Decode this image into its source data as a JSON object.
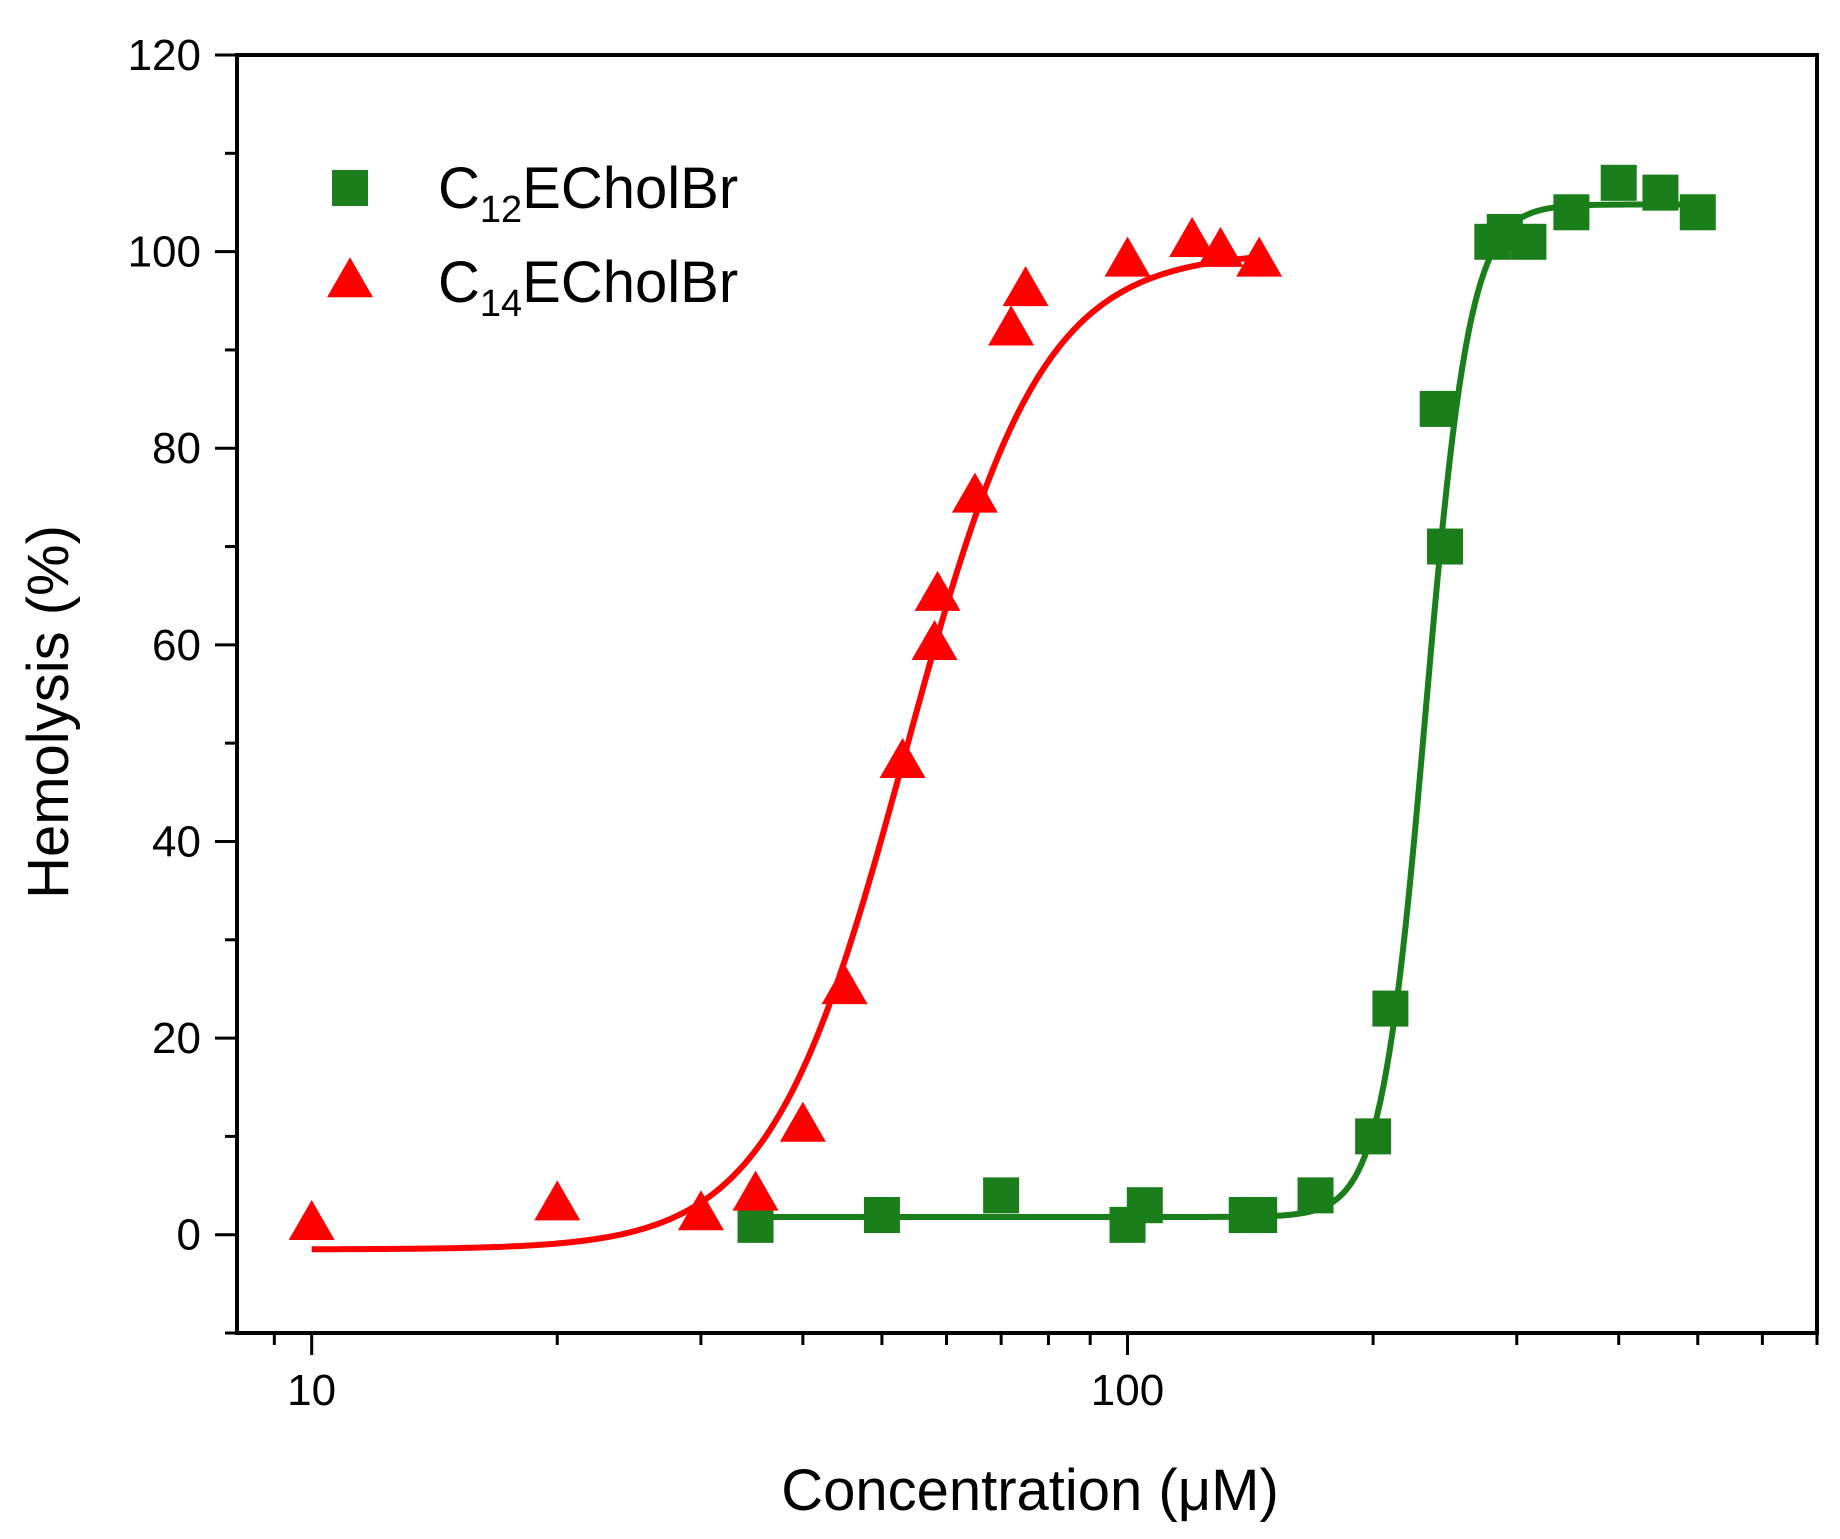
{
  "chart_data": {
    "type": "scatter",
    "title": "",
    "xlabel": "Concentration (μM)",
    "ylabel": "Hemolysis (%)",
    "xscale": "log",
    "xlim": [
      8.1,
      700
    ],
    "ylim": [
      -10,
      120
    ],
    "x_ticks": [
      10,
      100
    ],
    "x_tick_labels": [
      "10",
      "100"
    ],
    "y_ticks": [
      0,
      20,
      40,
      60,
      80,
      100,
      120
    ],
    "y_tick_labels": [
      "0",
      "20",
      "40",
      "60",
      "80",
      "100",
      "120"
    ],
    "legend_position": "top-left",
    "series": [
      {
        "name": "C12ECholBr",
        "legend": {
          "prefix": "C",
          "subscript": "12",
          "suffix": "ECholBr"
        },
        "marker": "square",
        "color": "#1a7f1a",
        "x": [
          35,
          50,
          70,
          100,
          105,
          140,
          145,
          170,
          200,
          210,
          240,
          245,
          280,
          290,
          310,
          350,
          400,
          450,
          500
        ],
        "y": [
          1,
          2,
          4,
          1,
          3,
          2,
          2,
          4,
          10,
          23,
          84,
          70,
          101,
          102,
          101,
          104,
          107,
          106,
          104
        ],
        "fit": {
          "model": "logistic",
          "bottom": 1.8,
          "top": 104.8,
          "x0": 232,
          "slope": 16
        }
      },
      {
        "name": "C14ECholBr",
        "legend": {
          "prefix": "C",
          "subscript": "14",
          "suffix": "ECholBr"
        },
        "marker": "triangle",
        "color": "#ff0000",
        "x": [
          10,
          20,
          30,
          35,
          40,
          45,
          53,
          58,
          58.5,
          65,
          72,
          75,
          100,
          120,
          130,
          145
        ],
        "y": [
          1,
          3,
          2,
          4,
          11,
          25,
          48,
          60,
          65,
          75,
          92,
          96,
          99,
          101,
          100,
          99
        ],
        "fit": {
          "model": "logistic",
          "bottom": -1.5,
          "top": 100,
          "x0": 53.5,
          "slope": 5.2
        }
      }
    ]
  }
}
